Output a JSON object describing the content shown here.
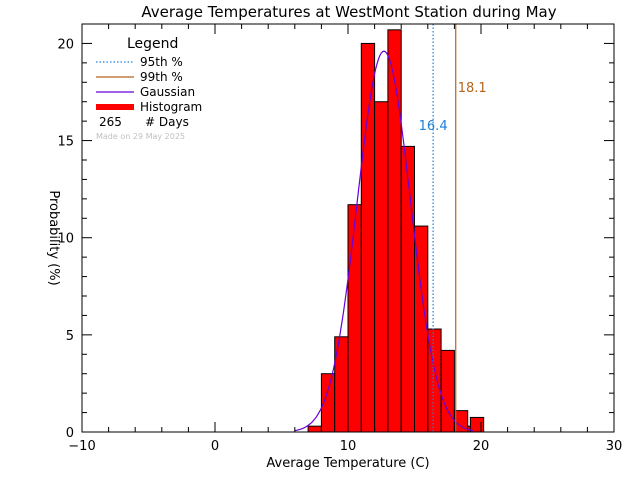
{
  "chart_data": {
    "type": "bar",
    "title": "Average Temperatures at WestMont Station during May",
    "xlabel": "Average Temperature (C)",
    "ylabel": "Probability (%)",
    "xlim": [
      -10,
      30
    ],
    "ylim": [
      0,
      21
    ],
    "xticks": [
      -10,
      0,
      10,
      20,
      30
    ],
    "yticks": [
      0,
      5,
      10,
      15,
      20
    ],
    "xtick_labels": [
      "−10",
      "0",
      "10",
      "20",
      "30"
    ],
    "ytick_labels": [
      "0",
      "5",
      "10",
      "15",
      "20"
    ],
    "bin_width": 1,
    "histogram": {
      "bin_starts": [
        7,
        8,
        9,
        10,
        11,
        12,
        13,
        14,
        15,
        16,
        17,
        18,
        19
      ],
      "values": [
        0.3,
        3.0,
        4.9,
        11.7,
        20.0,
        17.0,
        20.7,
        14.7,
        10.6,
        5.3,
        4.2,
        1.1,
        0.3
      ]
    },
    "extra_bar": {
      "bin_start": 19.2,
      "bin_width": 1.0,
      "value": 0.75
    },
    "gaussian": {
      "mean": 12.7,
      "sigma": 2.0,
      "peak": 19.6
    },
    "percentiles": [
      {
        "name": "95th %",
        "value": 16.4,
        "label": "16.4",
        "color": "#1e7fd8",
        "style": "dotted"
      },
      {
        "name": "99th %",
        "value": 18.1,
        "label": "18.1",
        "color": "#b5651d",
        "style": "solid"
      }
    ],
    "colors": {
      "histogram": "#ff0000",
      "gaussian": "#6a00d8",
      "axis": "#000000"
    }
  },
  "legend": {
    "title": "Legend",
    "items": [
      {
        "label": "95th %",
        "color": "#1e7fd8",
        "style": "dotted"
      },
      {
        "label": "99th %",
        "color": "#b5651d",
        "style": "solid"
      },
      {
        "label": "Gaussian",
        "color": "#6a00d8",
        "style": "solid"
      },
      {
        "label": "Histogram",
        "color": "#ff0000",
        "style": "thick"
      }
    ],
    "days_count": "265",
    "days_label": "# Days"
  },
  "made_on": "Made on 29 May 2025"
}
